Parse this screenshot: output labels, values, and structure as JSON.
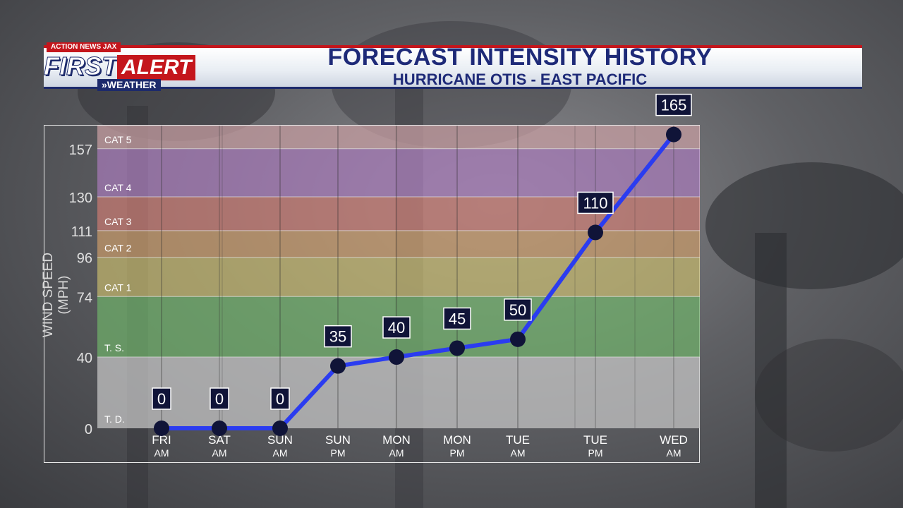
{
  "header": {
    "logo_top": "ACTION NEWS JAX",
    "logo_first": "FIRST",
    "logo_alert": "ALERT",
    "logo_weather": "»WEATHER",
    "title": "FORECAST INTENSITY HISTORY",
    "subtitle": "HURRICANE OTIS - EAST PACIFIC"
  },
  "colors": {
    "line": "#2b3cf0",
    "marker": "#101438",
    "label_box": "#101438",
    "td": "#c8c8c8",
    "ts": "#6fb06a",
    "cat1": "#c2b56c",
    "cat2": "#c79a6a",
    "cat3": "#c77a72",
    "cat4": "#a67ab8",
    "cat5": "#c9a0a3"
  },
  "chart_data": {
    "type": "line",
    "title": "FORECAST INTENSITY HISTORY",
    "subtitle": "HURRICANE OTIS - EAST PACIFIC",
    "ylabel": "WIND SPEED (MPH)",
    "xlabel": "",
    "ylim": [
      0,
      170
    ],
    "yticks": [
      0,
      40,
      74,
      96,
      111,
      130,
      157
    ],
    "categories": [
      {
        "day": "FRI",
        "time": "AM"
      },
      {
        "day": "SAT",
        "time": "AM"
      },
      {
        "day": "SUN",
        "time": "AM"
      },
      {
        "day": "SUN",
        "time": "PM"
      },
      {
        "day": "MON",
        "time": "AM"
      },
      {
        "day": "MON",
        "time": "PM"
      },
      {
        "day": "TUE",
        "time": "AM"
      },
      {
        "day": "TUE",
        "time": "PM"
      },
      {
        "day": "WED",
        "time": "AM"
      }
    ],
    "values": [
      0,
      0,
      0,
      35,
      40,
      45,
      50,
      110,
      165
    ],
    "bands": [
      {
        "label": "T. D.",
        "from": 0,
        "to": 40,
        "color_key": "td"
      },
      {
        "label": "T. S.",
        "from": 40,
        "to": 74,
        "color_key": "ts"
      },
      {
        "label": "CAT 1",
        "from": 74,
        "to": 96,
        "color_key": "cat1"
      },
      {
        "label": "CAT 2",
        "from": 96,
        "to": 111,
        "color_key": "cat2"
      },
      {
        "label": "CAT 3",
        "from": 111,
        "to": 130,
        "color_key": "cat3"
      },
      {
        "label": "CAT 4",
        "from": 130,
        "to": 157,
        "color_key": "cat4"
      },
      {
        "label": "CAT 5",
        "from": 157,
        "to": 170,
        "color_key": "cat5"
      }
    ],
    "grid": true,
    "legend": "none"
  }
}
